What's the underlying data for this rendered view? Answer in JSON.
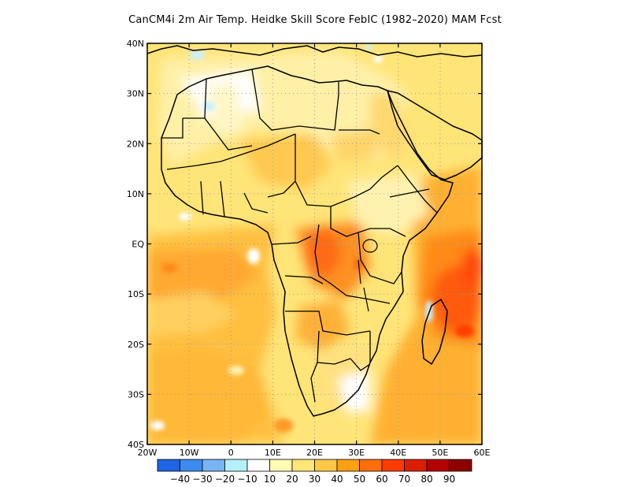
{
  "title": "CanCM4i  2m Air Temp. Heidke Skill Score FebIC (1982–2020) MAM Fcst",
  "map": {
    "region": "Africa",
    "lon_range": [
      -20,
      60
    ],
    "lat_range": [
      -40,
      40
    ],
    "x_tick_labels": [
      "20W",
      "10W",
      "0",
      "10E",
      "20E",
      "30E",
      "40E",
      "50E",
      "60E"
    ],
    "y_tick_labels": [
      "40N",
      "30N",
      "20N",
      "10N",
      "EQ",
      "10S",
      "20S",
      "30S",
      "40S"
    ],
    "grid": "dotted",
    "ocean_dominant_level": "20-40",
    "land_dominant_level": "10-30",
    "hotspots": [
      "Indian Ocean east of Madagascar (60-80)",
      "Central Africa / Congo basin (40-60)",
      "Tropical Atlantic south of equator (30-50)"
    ],
    "negative_areas": [
      "Mediterranean coast near 40N",
      "NW Africa near 28N",
      "Gulf of Guinea near 4S 5E",
      "Madagascar west coast"
    ]
  },
  "colorbar": {
    "levels": [
      -40,
      -30,
      -20,
      -10,
      10,
      20,
      30,
      40,
      50,
      60,
      70,
      80,
      90
    ],
    "labels": [
      "−40",
      "−30",
      "−20",
      "−10",
      "10",
      "20",
      "30",
      "40",
      "50",
      "60",
      "70",
      "80",
      "90"
    ],
    "colors": [
      "#1e64e6",
      "#3c8cf0",
      "#78b4f5",
      "#b4f0fa",
      "#ffffff",
      "#fffab4",
      "#ffe678",
      "#ffc846",
      "#ffa014",
      "#ff6e0a",
      "#ff3c00",
      "#dc1e00",
      "#b40000",
      "#8c0000"
    ]
  }
}
